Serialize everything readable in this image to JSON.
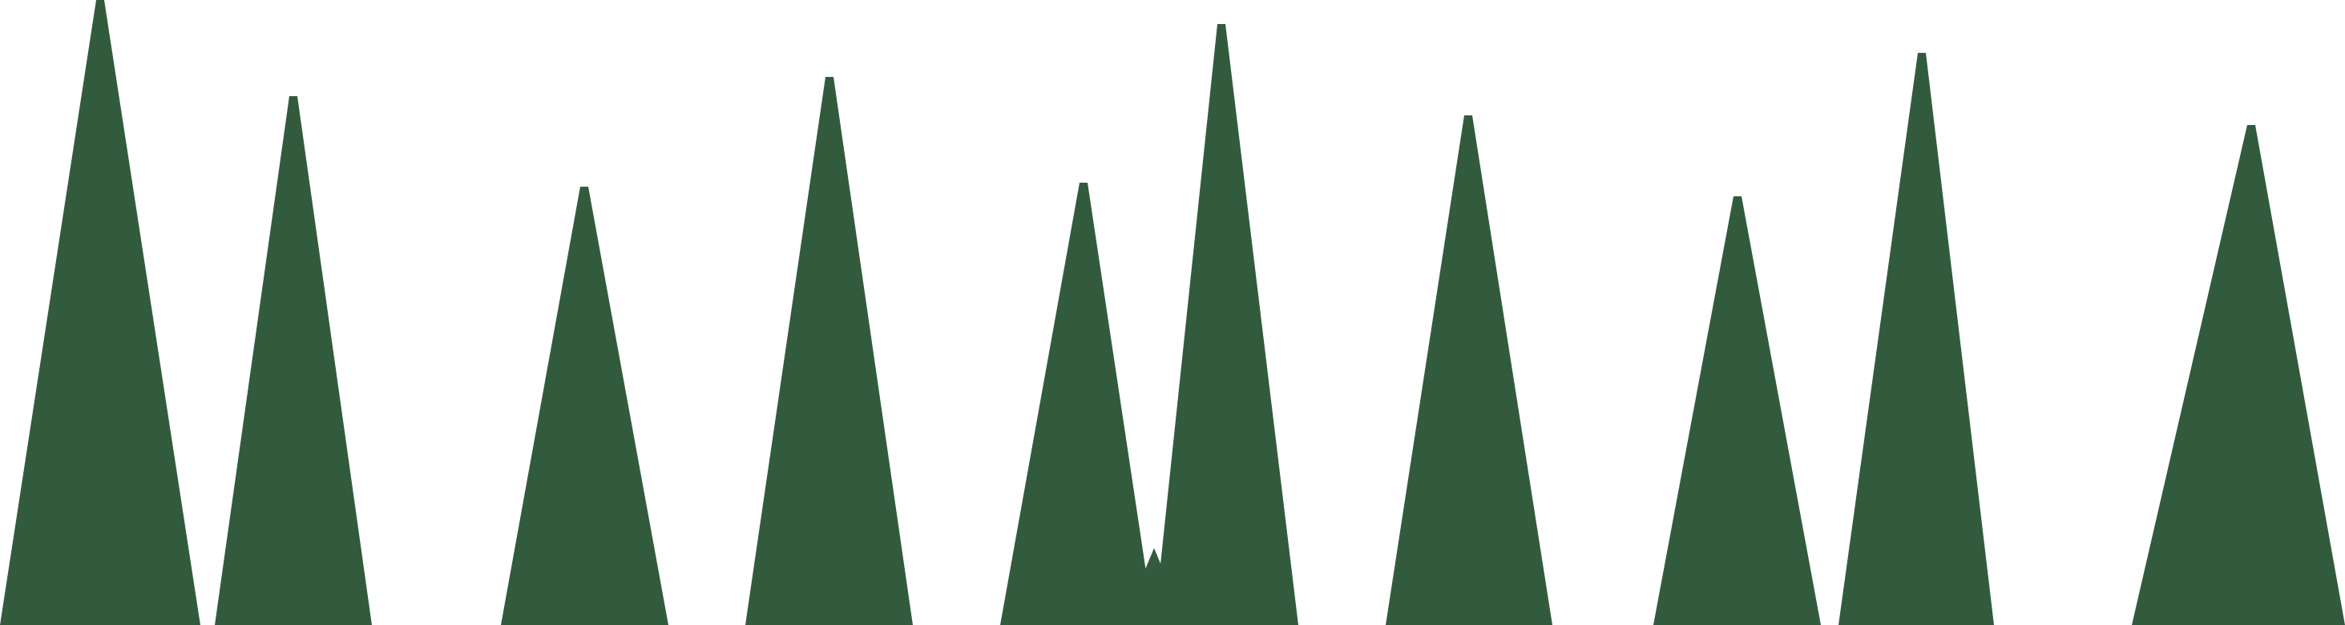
{
  "scene": {
    "background_color": "#ffffff",
    "shape_color": "#325b3e",
    "shape_kind": "tall-triangle-spike",
    "spike_count": 11
  }
}
